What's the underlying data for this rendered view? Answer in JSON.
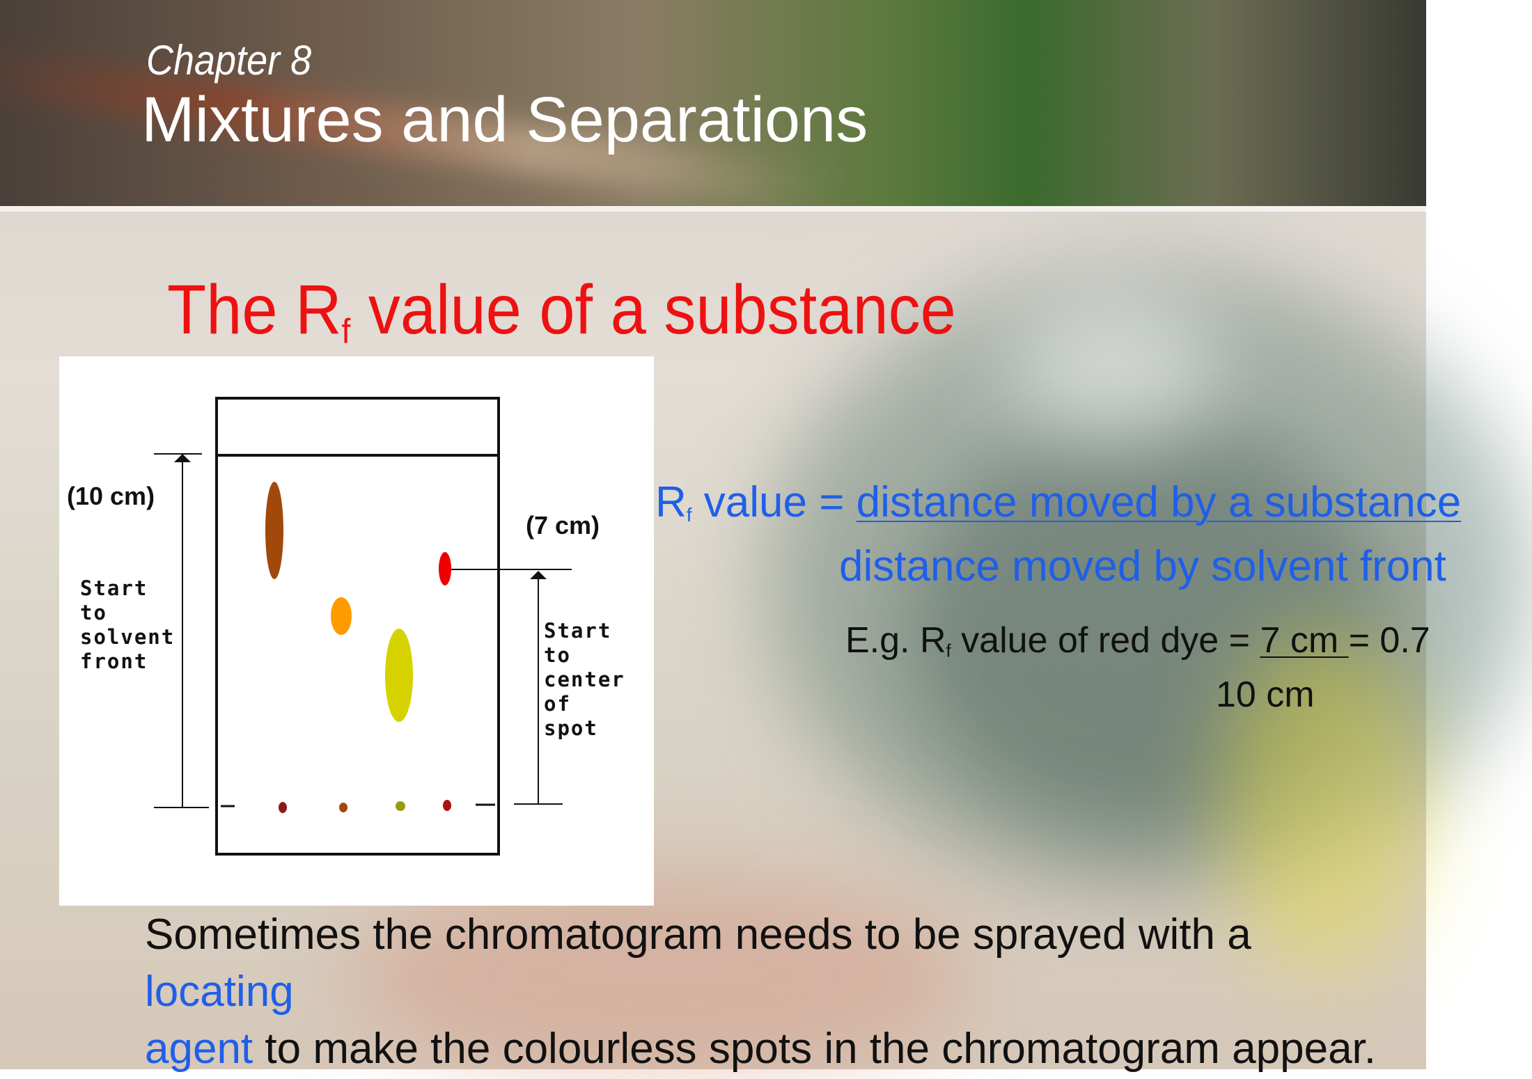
{
  "header": {
    "chapter": "Chapter 8",
    "title": "Mixtures and Separations"
  },
  "slide": {
    "title_prefix": "The R",
    "title_subscript": "f",
    "title_suffix": " value of a substance"
  },
  "diagram": {
    "label_total": "(10 cm)",
    "label_spot": "(7 cm)",
    "left_caption": [
      "Start",
      "to",
      "solvent",
      "front"
    ],
    "right_caption": [
      "Start",
      "to",
      "center",
      "of",
      "spot"
    ],
    "spot_colors": {
      "brown": "#a0490a",
      "orange": "#ff9a00",
      "yellow": "#d6d200",
      "red": "#ee0000"
    }
  },
  "formula": {
    "lhs_prefix": "R",
    "lhs_subscript": "f",
    "lhs_suffix": " value = ",
    "numerator": "distance moved by a substance",
    "denominator": "distance moved by solvent front"
  },
  "example": {
    "prefix": "E.g. R",
    "subscript": "f",
    "middle": " value of red dye = ",
    "numerator": "7 cm ",
    "result": "= 0.7",
    "denominator": "10 cm"
  },
  "body": {
    "part1": "Sometimes the chromatogram needs to be sprayed with a ",
    "highlight1": "locating",
    "highlight2": "agent",
    "part2": " to make the colourless spots in the chromatogram appear."
  },
  "colors": {
    "title_red": "#ee1111",
    "formula_blue": "#1f5fe8"
  }
}
